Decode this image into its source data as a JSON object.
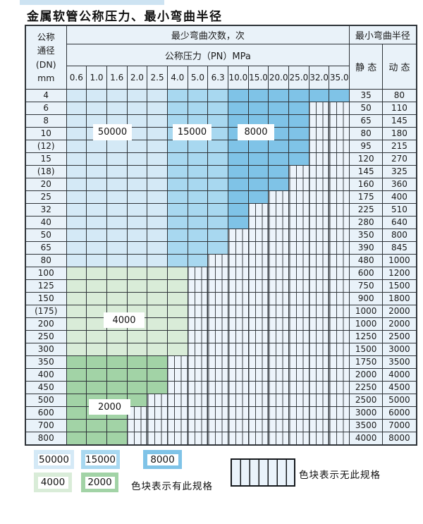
{
  "title": "金属软管公称压力、最小弯曲半径",
  "colors": {
    "c50000": "#d4e9f6",
    "c15000": "#a8d8f0",
    "c8000": "#7fc3e7",
    "c4000": "#d9ecd8",
    "c2000": "#a2d3a6",
    "hatch_bg": "#edf4fb",
    "label_bg": "#e9f2f9",
    "border": "#2e3338",
    "top_strip": "#cde3f2"
  },
  "table": {
    "corner": "公称\n通径\n(DN)\nmm",
    "span_header": "最少弯曲次数，次",
    "pressure_header": "公称压力（PN）MPa",
    "radius_header": "最小弯曲半径",
    "static_header": "静 态",
    "dynamic_header": "动 态"
  },
  "overlay_labels": [
    "50000",
    "15000",
    "8000",
    "4000",
    "2000"
  ],
  "legend": {
    "has_spec_items": [
      {
        "label": "50000",
        "color": "#d4e9f6"
      },
      {
        "label": "15000",
        "color": "#a8d8f0"
      },
      {
        "label": "8000",
        "color": "#7fc3e7"
      },
      {
        "label": "4000",
        "color": "#d9ecd8"
      },
      {
        "label": "2000",
        "color": "#a2d3a6"
      }
    ],
    "has_spec_note": "色块表示有此规格",
    "no_spec_note": "色块表示无此规格"
  },
  "chart_data": {
    "type": "heatmap",
    "title": "金属软管公称压力、最小弯曲半径",
    "xlabel": "公称压力（PN）MPa",
    "ylabel": "公称通径(DN) mm",
    "columns": [
      "0.6",
      "1.0",
      "1.6",
      "2.0",
      "2.5",
      "4.0",
      "5.0",
      "6.3",
      "10.0",
      "15.0",
      "20.0",
      "25.0",
      "32.0",
      "35.0"
    ],
    "legend_position": "bottom",
    "cycle_color_map": {
      "50000": "#d4e9f6",
      "15000": "#a8d8f0",
      "8000": "#7fc3e7",
      "4000": "#d9ecd8",
      "2000": "#a2d3a6"
    },
    "rows": [
      {
        "dn": "4",
        "cycles": [
          50000,
          50000,
          50000,
          50000,
          50000,
          15000,
          15000,
          15000,
          8000,
          8000,
          8000,
          8000,
          8000,
          8000
        ],
        "static": 35,
        "dynamic": 80
      },
      {
        "dn": "6",
        "cycles": [
          50000,
          50000,
          50000,
          50000,
          50000,
          15000,
          15000,
          15000,
          8000,
          8000,
          8000,
          8000,
          null,
          null
        ],
        "static": 50,
        "dynamic": 110
      },
      {
        "dn": "8",
        "cycles": [
          50000,
          50000,
          50000,
          50000,
          50000,
          15000,
          15000,
          15000,
          8000,
          8000,
          8000,
          8000,
          null,
          null
        ],
        "static": 65,
        "dynamic": 145
      },
      {
        "dn": "10",
        "cycles": [
          50000,
          50000,
          50000,
          50000,
          50000,
          15000,
          15000,
          15000,
          8000,
          8000,
          8000,
          8000,
          null,
          null
        ],
        "static": 80,
        "dynamic": 180
      },
      {
        "dn": "(12)",
        "cycles": [
          50000,
          50000,
          50000,
          50000,
          50000,
          15000,
          15000,
          15000,
          8000,
          8000,
          8000,
          8000,
          null,
          null
        ],
        "static": 95,
        "dynamic": 215
      },
      {
        "dn": "15",
        "cycles": [
          50000,
          50000,
          50000,
          50000,
          50000,
          15000,
          15000,
          15000,
          8000,
          8000,
          8000,
          8000,
          null,
          null
        ],
        "static": 120,
        "dynamic": 270
      },
      {
        "dn": "(18)",
        "cycles": [
          50000,
          50000,
          50000,
          50000,
          50000,
          15000,
          15000,
          15000,
          8000,
          8000,
          8000,
          null,
          null,
          null
        ],
        "static": 145,
        "dynamic": 325
      },
      {
        "dn": "20",
        "cycles": [
          50000,
          50000,
          50000,
          50000,
          50000,
          15000,
          15000,
          15000,
          8000,
          8000,
          8000,
          null,
          null,
          null
        ],
        "static": 160,
        "dynamic": 360
      },
      {
        "dn": "25",
        "cycles": [
          50000,
          50000,
          50000,
          50000,
          50000,
          15000,
          15000,
          15000,
          8000,
          8000,
          null,
          null,
          null,
          null
        ],
        "static": 175,
        "dynamic": 400
      },
      {
        "dn": "32",
        "cycles": [
          50000,
          50000,
          50000,
          50000,
          50000,
          15000,
          15000,
          15000,
          8000,
          null,
          null,
          null,
          null,
          null
        ],
        "static": 225,
        "dynamic": 510
      },
      {
        "dn": "40",
        "cycles": [
          50000,
          50000,
          50000,
          50000,
          50000,
          15000,
          15000,
          15000,
          8000,
          null,
          null,
          null,
          null,
          null
        ],
        "static": 280,
        "dynamic": 640
      },
      {
        "dn": "50",
        "cycles": [
          50000,
          50000,
          50000,
          50000,
          50000,
          15000,
          15000,
          15000,
          null,
          null,
          null,
          null,
          null,
          null
        ],
        "static": 350,
        "dynamic": 800
      },
      {
        "dn": "65",
        "cycles": [
          50000,
          50000,
          50000,
          50000,
          50000,
          15000,
          15000,
          15000,
          null,
          null,
          null,
          null,
          null,
          null
        ],
        "static": 390,
        "dynamic": 845
      },
      {
        "dn": "80",
        "cycles": [
          50000,
          50000,
          50000,
          50000,
          50000,
          15000,
          15000,
          null,
          null,
          null,
          null,
          null,
          null,
          null
        ],
        "static": 480,
        "dynamic": 1000
      },
      {
        "dn": "100",
        "cycles": [
          4000,
          4000,
          4000,
          4000,
          4000,
          4000,
          null,
          null,
          null,
          null,
          null,
          null,
          null,
          null
        ],
        "static": 600,
        "dynamic": 1200
      },
      {
        "dn": "125",
        "cycles": [
          4000,
          4000,
          4000,
          4000,
          4000,
          4000,
          null,
          null,
          null,
          null,
          null,
          null,
          null,
          null
        ],
        "static": 750,
        "dynamic": 1500
      },
      {
        "dn": "150",
        "cycles": [
          4000,
          4000,
          4000,
          4000,
          4000,
          4000,
          null,
          null,
          null,
          null,
          null,
          null,
          null,
          null
        ],
        "static": 900,
        "dynamic": 1800
      },
      {
        "dn": "(175)",
        "cycles": [
          4000,
          4000,
          4000,
          4000,
          4000,
          4000,
          null,
          null,
          null,
          null,
          null,
          null,
          null,
          null
        ],
        "static": 1000,
        "dynamic": 2000
      },
      {
        "dn": "200",
        "cycles": [
          4000,
          4000,
          4000,
          4000,
          4000,
          4000,
          null,
          null,
          null,
          null,
          null,
          null,
          null,
          null
        ],
        "static": 1000,
        "dynamic": 2000
      },
      {
        "dn": "250",
        "cycles": [
          4000,
          4000,
          4000,
          4000,
          4000,
          4000,
          null,
          null,
          null,
          null,
          null,
          null,
          null,
          null
        ],
        "static": 1250,
        "dynamic": 2500
      },
      {
        "dn": "300",
        "cycles": [
          4000,
          4000,
          4000,
          4000,
          4000,
          4000,
          null,
          null,
          null,
          null,
          null,
          null,
          null,
          null
        ],
        "static": 1500,
        "dynamic": 3000
      },
      {
        "dn": "350",
        "cycles": [
          2000,
          2000,
          2000,
          2000,
          2000,
          null,
          null,
          null,
          null,
          null,
          null,
          null,
          null,
          null
        ],
        "static": 1750,
        "dynamic": 3500
      },
      {
        "dn": "400",
        "cycles": [
          2000,
          2000,
          2000,
          2000,
          2000,
          null,
          null,
          null,
          null,
          null,
          null,
          null,
          null,
          null
        ],
        "static": 2000,
        "dynamic": 4000
      },
      {
        "dn": "450",
        "cycles": [
          2000,
          2000,
          2000,
          2000,
          2000,
          null,
          null,
          null,
          null,
          null,
          null,
          null,
          null,
          null
        ],
        "static": 2250,
        "dynamic": 4500
      },
      {
        "dn": "500",
        "cycles": [
          2000,
          2000,
          2000,
          2000,
          null,
          null,
          null,
          null,
          null,
          null,
          null,
          null,
          null,
          null
        ],
        "static": 2500,
        "dynamic": 5000
      },
      {
        "dn": "600",
        "cycles": [
          2000,
          2000,
          2000,
          null,
          null,
          null,
          null,
          null,
          null,
          null,
          null,
          null,
          null,
          null
        ],
        "static": 3000,
        "dynamic": 6000
      },
      {
        "dn": "700",
        "cycles": [
          2000,
          2000,
          2000,
          null,
          null,
          null,
          null,
          null,
          null,
          null,
          null,
          null,
          null,
          null
        ],
        "static": 3500,
        "dynamic": 7000
      },
      {
        "dn": "800",
        "cycles": [
          2000,
          2000,
          2000,
          null,
          null,
          null,
          null,
          null,
          null,
          null,
          null,
          null,
          null,
          null
        ],
        "static": 4000,
        "dynamic": 8000
      }
    ]
  }
}
